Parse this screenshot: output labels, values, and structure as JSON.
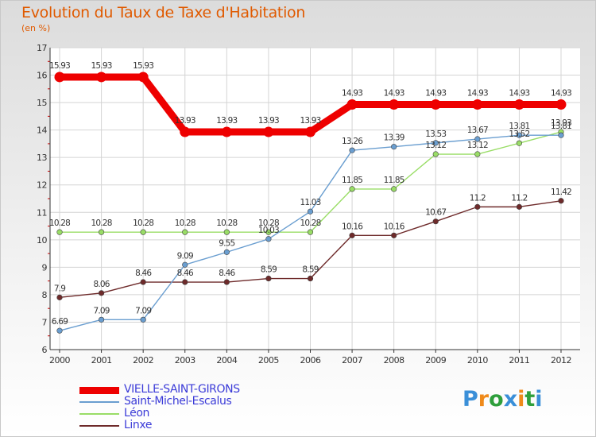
{
  "title": "Evolution du Taux de Taxe d'Habitation",
  "subtitle": "(en %)",
  "logo": {
    "text": "Proxiti",
    "letters": [
      {
        "ch": "P",
        "color": "#3a8fd8"
      },
      {
        "ch": "r",
        "color": "#ef8a1a"
      },
      {
        "ch": "o",
        "color": "#2f9f3c"
      },
      {
        "ch": "x",
        "color": "#3a8fd8"
      },
      {
        "ch": "i",
        "color": "#ef8a1a"
      },
      {
        "ch": "t",
        "color": "#2f9f3c"
      },
      {
        "ch": "i",
        "color": "#3a8fd8"
      }
    ]
  },
  "chart_data": {
    "type": "line",
    "x": [
      "2000",
      "2001",
      "2002",
      "2003",
      "2004",
      "2005",
      "2006",
      "2007",
      "2008",
      "2009",
      "2010",
      "2011",
      "2012"
    ],
    "ylim": [
      6,
      17
    ],
    "yticks": [
      "6",
      "7",
      "8",
      "9",
      "10",
      "11",
      "12",
      "13",
      "14",
      "15",
      "16",
      "17"
    ],
    "grid": true,
    "legend_position": "bottom-left",
    "series": [
      {
        "name": "VIELLE-SAINT-GIRONS",
        "color": "#ee0000",
        "values": [
          15.93,
          15.93,
          15.93,
          13.93,
          13.93,
          13.93,
          13.93,
          14.93,
          14.93,
          14.93,
          14.93,
          14.93,
          14.93
        ],
        "labels": [
          "15.93",
          "15.93",
          "15.93",
          "13.93",
          "13.93",
          "13.93",
          "13.93",
          "14.93",
          "14.93",
          "14.93",
          "14.93",
          "14.93",
          "14.93"
        ]
      },
      {
        "name": "Saint-Michel-Escalus",
        "color": "#6a9ed0",
        "values": [
          6.69,
          7.09,
          7.09,
          9.09,
          9.55,
          10.03,
          11.03,
          13.26,
          13.39,
          13.53,
          13.67,
          13.81,
          13.81
        ],
        "labels": [
          "6.69",
          "7.09",
          "7.09",
          "9.09",
          "9.55",
          "10.03",
          "11.03",
          "13.26",
          "13.39",
          "13.53",
          "13.67",
          "13.81",
          "13.81"
        ]
      },
      {
        "name": "Léon",
        "color": "#99dd66",
        "values": [
          10.28,
          10.28,
          10.28,
          10.28,
          10.28,
          10.28,
          10.28,
          11.85,
          11.85,
          13.12,
          13.12,
          13.52,
          13.93
        ],
        "labels": [
          "10.28",
          "10.28",
          "10.28",
          "10.28",
          "10.28",
          "10.28",
          "10.28",
          "11.85",
          "11.85",
          "13.12",
          "13.12",
          "13.52",
          "13.93"
        ]
      },
      {
        "name": "Linxe",
        "color": "#6e2a2a",
        "values": [
          7.9,
          8.06,
          8.46,
          8.46,
          8.46,
          8.59,
          8.59,
          10.16,
          10.16,
          10.67,
          11.2,
          11.2,
          11.42
        ],
        "labels": [
          "7.9",
          "8.06",
          "8.46",
          "8.46",
          "8.46",
          "8.59",
          "8.59",
          "10.16",
          "10.16",
          "10.67",
          "11.2",
          "11.2",
          "11.42"
        ]
      }
    ]
  }
}
